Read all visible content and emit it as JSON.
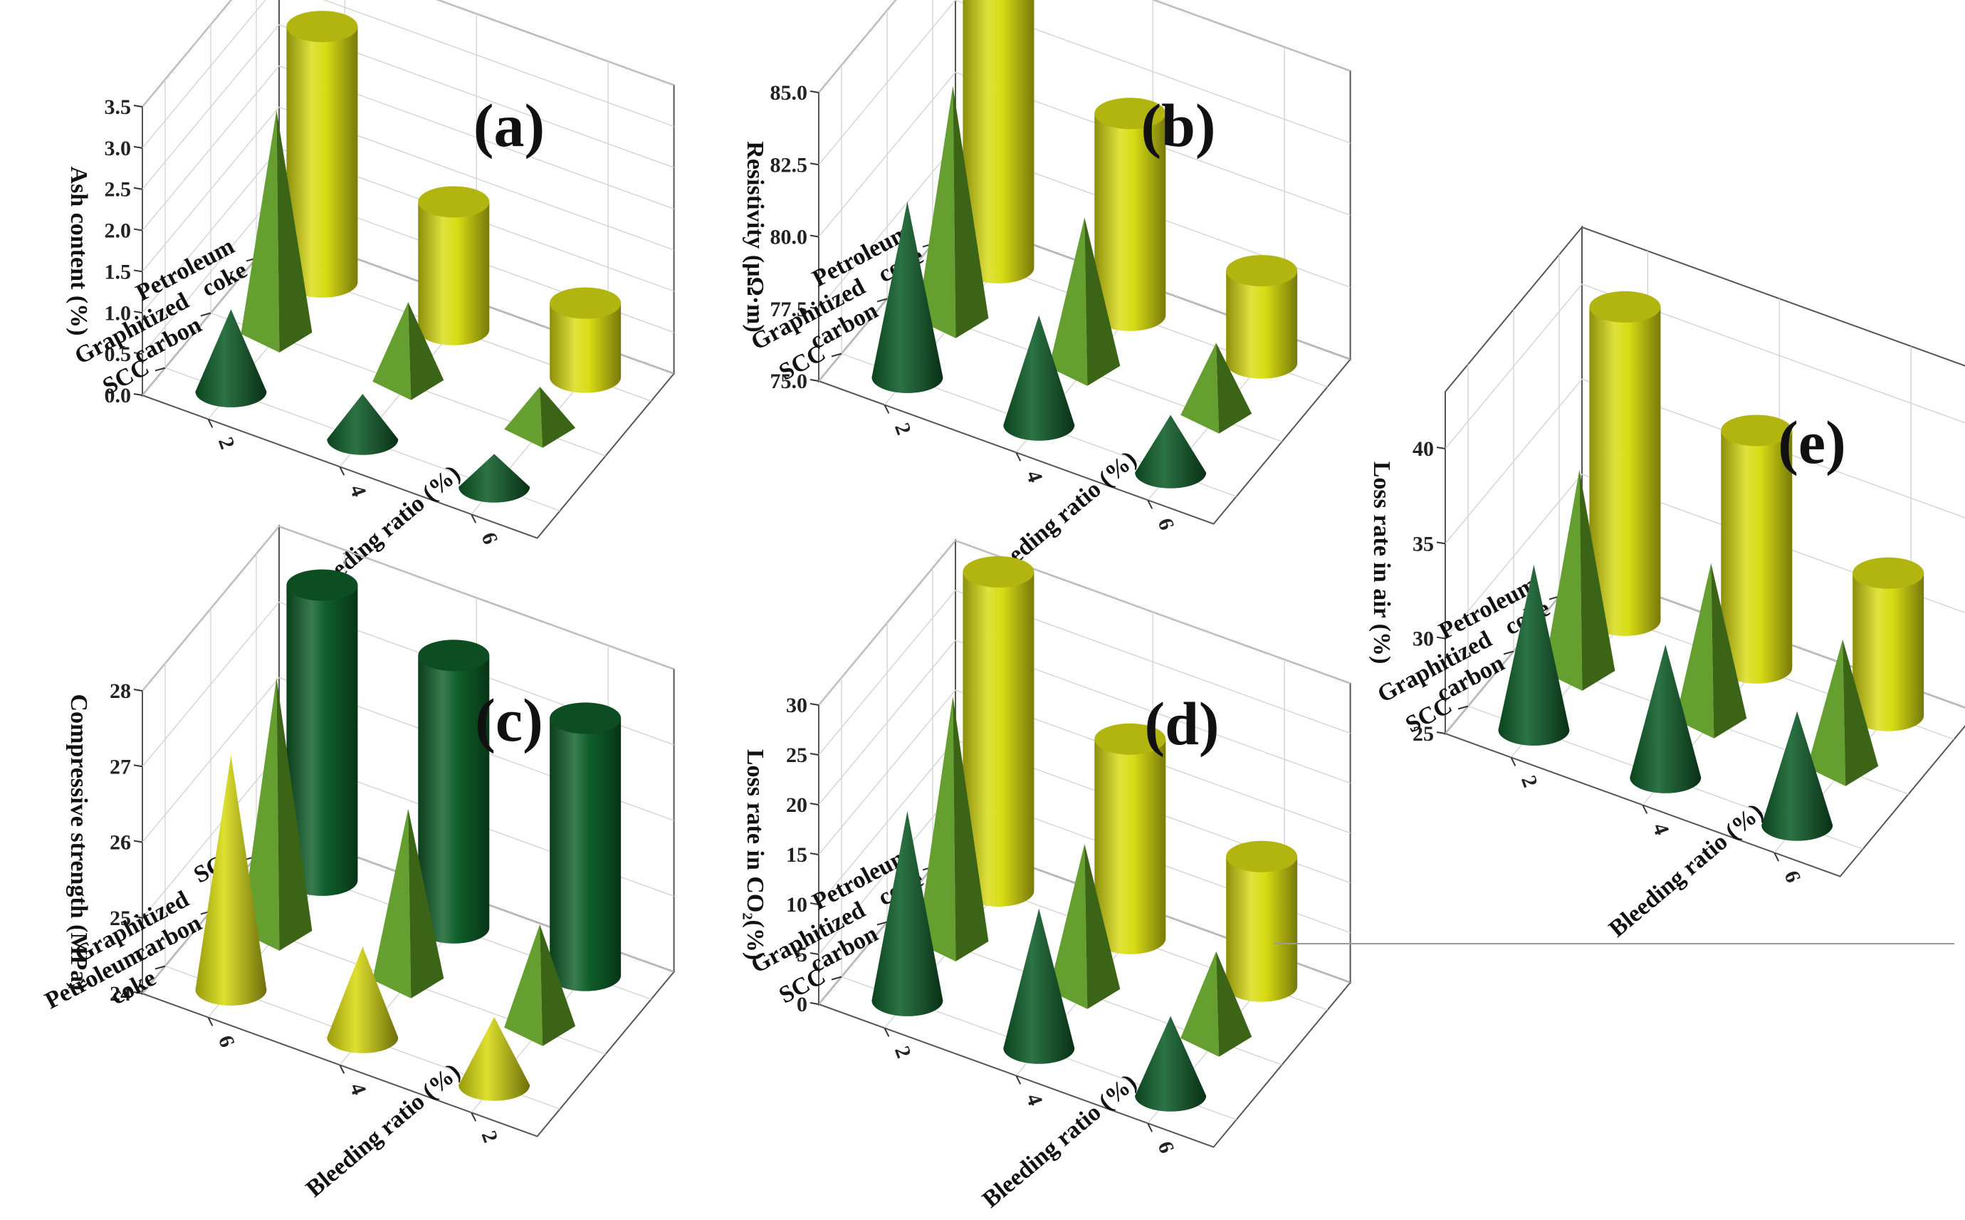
{
  "colors": {
    "dark_green": "#0f5f2a",
    "mid_green": "#5c9a24",
    "yellow": "#d9dc13"
  },
  "shared": {
    "bleeding_axis_title": "Bleeding ratio (%)",
    "bleeding_ticks": [
      "2",
      "4",
      "6"
    ]
  },
  "chart_data": [
    {
      "id": "a",
      "type": "3d-bar",
      "panel_label": "(a)",
      "ylabel": "Ash content (%)",
      "ylim": [
        0,
        3.5
      ],
      "yticks": [
        "0.0",
        "0.5",
        "1.0",
        "1.5",
        "2.0",
        "2.5",
        "3.0",
        "3.5"
      ],
      "categories": [
        "SCC",
        "Graphitized carbon",
        "Petroleum coke"
      ],
      "category_labels": [
        [
          "SCC"
        ],
        [
          "Graphitized",
          "carbon"
        ],
        [
          "Petroleum",
          "coke"
        ]
      ],
      "x": [
        "2",
        "4",
        "6"
      ],
      "xlabel": "Bleeding ratio (%)",
      "series": [
        {
          "name": "SCC",
          "shape": "cone",
          "color": "dark_green",
          "values": [
            1.0,
            0.55,
            0.4
          ]
        },
        {
          "name": "Graphitized carbon",
          "shape": "pyramid",
          "color": "mid_green",
          "values": [
            2.75,
            1.0,
            0.55
          ]
        },
        {
          "name": "Petroleum coke",
          "shape": "cylinder",
          "color": "yellow",
          "values": [
            3.1,
            1.55,
            0.9
          ]
        }
      ]
    },
    {
      "id": "b",
      "type": "3d-bar",
      "panel_label": "(b)",
      "ylabel": "Resistivity (μΩ·m)",
      "ylim": [
        75.0,
        85.0
      ],
      "yticks": [
        "75.0",
        "77.5",
        "80.0",
        "82.5",
        "85.0"
      ],
      "categories": [
        "SCC",
        "Graphitized carbon",
        "Petroleum coke"
      ],
      "category_labels": [
        [
          "SCC"
        ],
        [
          "Graphitized",
          "carbon"
        ],
        [
          "Petroleum",
          "coke"
        ]
      ],
      "x": [
        "2",
        "4",
        "6"
      ],
      "xlabel": "Bleeding ratio (%)",
      "series": [
        {
          "name": "SCC",
          "shape": "cone",
          "color": "dark_green",
          "values": [
            81.1,
            78.8,
            77.0
          ]
        },
        {
          "name": "Graphitized carbon",
          "shape": "pyramid",
          "color": "mid_green",
          "values": [
            83.2,
            80.3,
            77.6
          ]
        },
        {
          "name": "Petroleum coke",
          "shape": "cylinder",
          "color": "yellow",
          "values": [
            84.9,
            82.0,
            78.2
          ]
        }
      ]
    },
    {
      "id": "c",
      "type": "3d-bar",
      "panel_label": "(c)",
      "ylabel": "Compressive strength (MPa)",
      "ylim": [
        24,
        28
      ],
      "yticks": [
        "24",
        "25",
        "26",
        "27",
        "28"
      ],
      "categories": [
        "Petroleum coke",
        "Graphitized carbon",
        "SCC"
      ],
      "category_labels": [
        [
          "Petroleum",
          "coke"
        ],
        [
          "Graphitized",
          "carbon"
        ],
        [
          "SCC"
        ]
      ],
      "x": [
        "6",
        "4",
        "2"
      ],
      "xlabel": "Bleeding ratio (%)",
      "series": [
        {
          "name": "Petroleum coke",
          "shape": "cone",
          "color": "yellow",
          "values": [
            27.1,
            25.2,
            24.9
          ]
        },
        {
          "name": "Graphitized carbon",
          "shape": "pyramid",
          "color": "mid_green",
          "values": [
            27.4,
            26.3,
            25.4
          ]
        },
        {
          "name": "SCC",
          "shape": "cylinder",
          "color": "dark_green",
          "values": [
            27.9,
            27.6,
            27.4
          ]
        }
      ]
    },
    {
      "id": "d",
      "type": "3d-bar",
      "panel_label": "(d)",
      "ylabel": "Loss rate in CO₂(%)",
      "ylim": [
        0,
        30
      ],
      "yticks": [
        "0",
        "5",
        "10",
        "15",
        "20",
        "25",
        "30"
      ],
      "categories": [
        "SCC",
        "Graphitized carbon",
        "Petroleum coke"
      ],
      "category_labels": [
        [
          "SCC"
        ],
        [
          "Graphitized",
          "carbon"
        ],
        [
          "Petroleum",
          "coke"
        ]
      ],
      "x": [
        "2",
        "4",
        "6"
      ],
      "xlabel": "Bleeding ratio (%)",
      "series": [
        {
          "name": "SCC",
          "shape": "cone",
          "color": "dark_green",
          "values": [
            19,
            14,
            8
          ]
        },
        {
          "name": "Graphitized carbon",
          "shape": "pyramid",
          "color": "mid_green",
          "values": [
            25,
            15,
            9
          ]
        },
        {
          "name": "Petroleum coke",
          "shape": "cylinder",
          "color": "yellow",
          "values": [
            32,
            20,
            13
          ]
        }
      ]
    },
    {
      "id": "e",
      "type": "3d-bar",
      "panel_label": "(e)",
      "ylabel": "Loss rate in air (%)",
      "ylim": [
        25,
        43
      ],
      "yticks": [
        "25",
        "30",
        "35",
        "40"
      ],
      "categories": [
        "SCC",
        "Graphitized carbon",
        "Petroleum coke"
      ],
      "category_labels": [
        [
          "SCC"
        ],
        [
          "Graphitized",
          "carbon"
        ],
        [
          "Petroleum",
          "coke"
        ]
      ],
      "x": [
        "2",
        "4",
        "6"
      ],
      "xlabel": "Bleeding ratio (%)",
      "series": [
        {
          "name": "SCC",
          "shape": "cone",
          "color": "dark_green",
          "values": [
            33.7,
            32.0,
            31.0
          ]
        },
        {
          "name": "Graphitized carbon",
          "shape": "pyramid",
          "color": "mid_green",
          "values": [
            35.8,
            33.4,
            31.9
          ]
        },
        {
          "name": "Petroleum coke",
          "shape": "cylinder",
          "color": "yellow",
          "values": [
            41.5,
            37.5,
            32.5
          ]
        }
      ]
    }
  ]
}
